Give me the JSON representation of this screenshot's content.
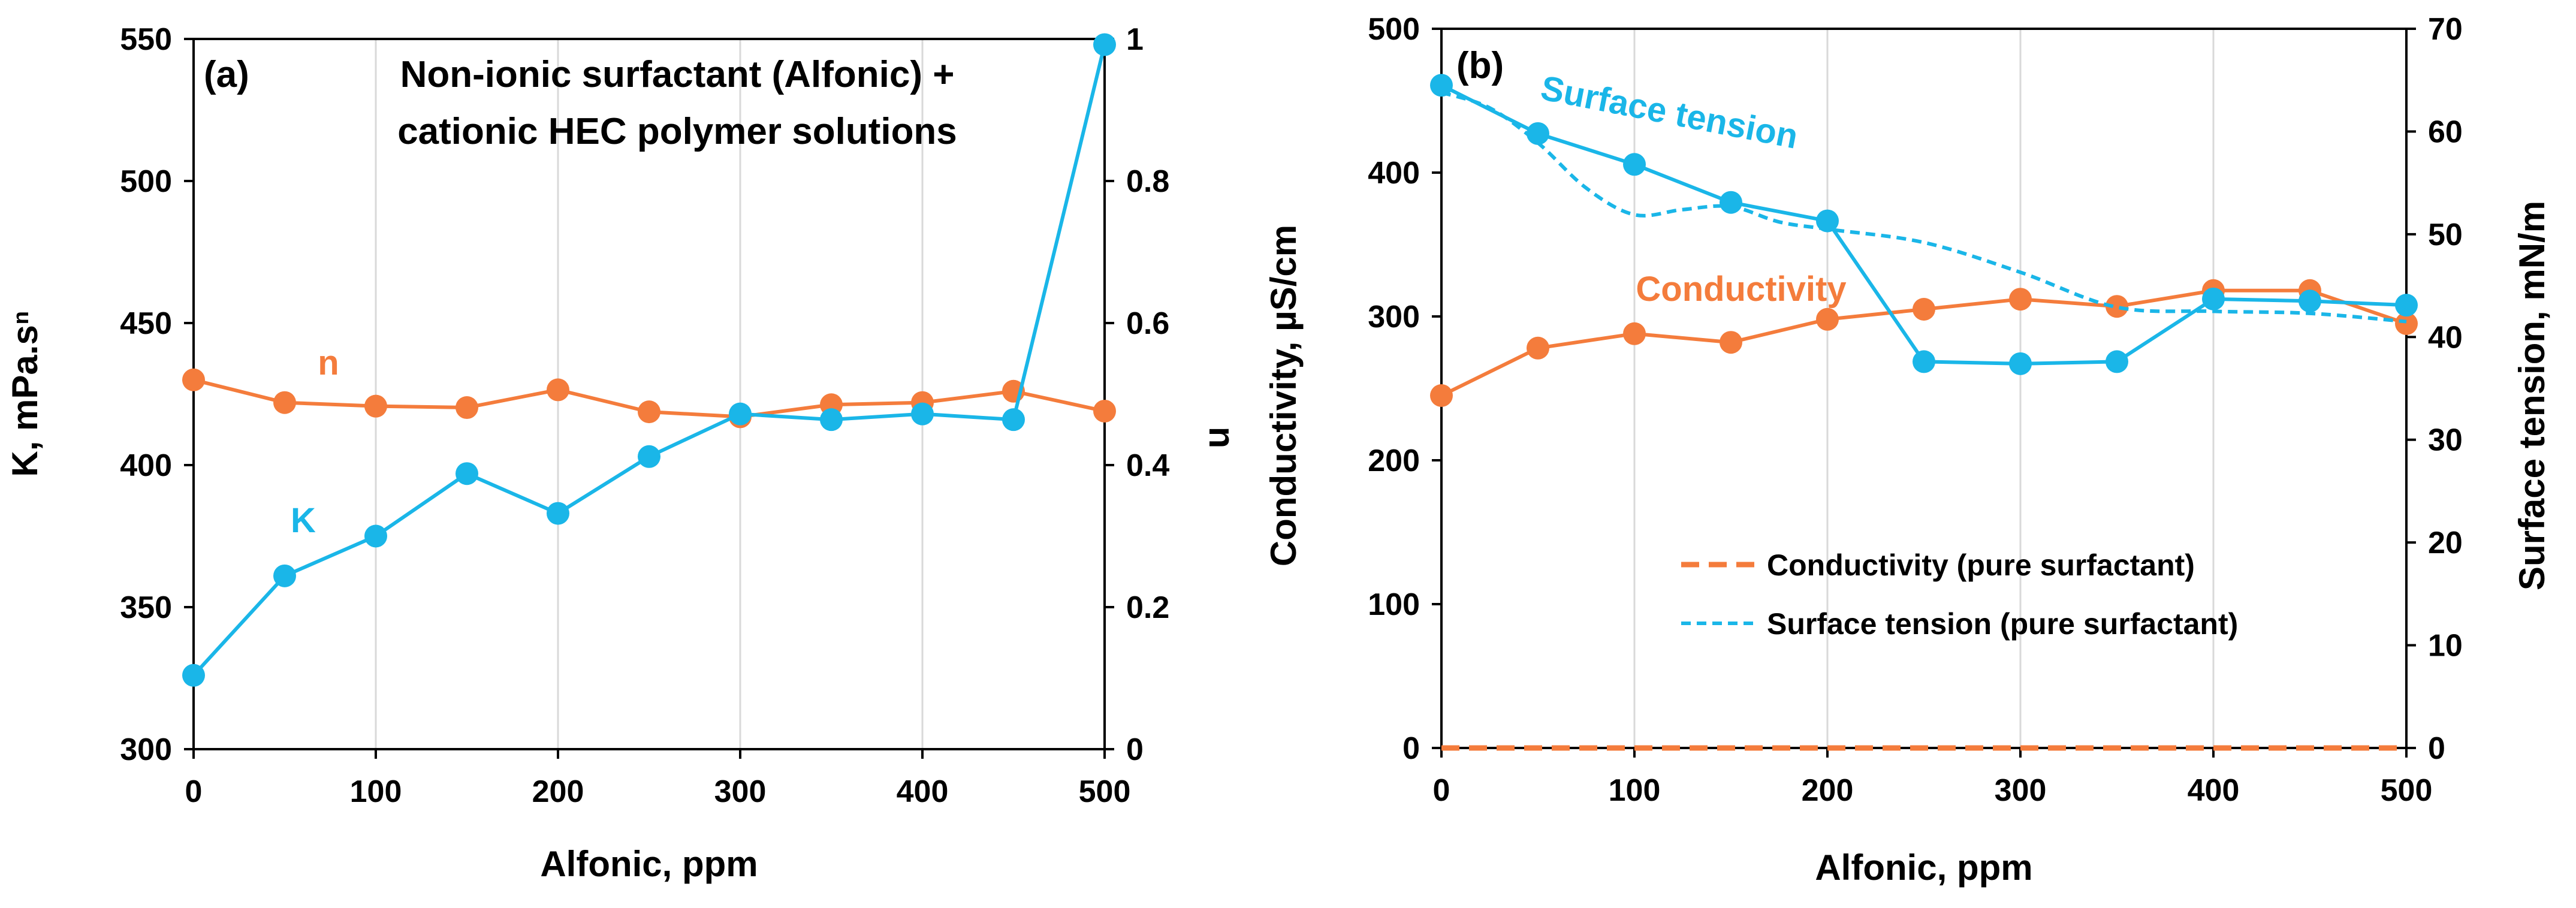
{
  "colors": {
    "orange": "#F47C3C",
    "blue": "#1AB6E8",
    "grid": "#D9D9D9",
    "axis": "#000000"
  },
  "chart_data": [
    {
      "id": "a",
      "type": "line",
      "panel_label": "(a)",
      "title_lines": [
        "Non-ionic surfactant (Alfonic) +",
        "cationic HEC polymer solutions"
      ],
      "xlabel": "Alfonic, ppm",
      "ylabel": "K, mPa.sⁿ",
      "y2label": "n",
      "xlim": [
        0,
        500
      ],
      "ylim": [
        300,
        550
      ],
      "y2lim": [
        0,
        1
      ],
      "x_ticks": [
        0,
        100,
        200,
        300,
        400,
        500
      ],
      "y_ticks": [
        300,
        350,
        400,
        450,
        500,
        550
      ],
      "y2_ticks": [
        0,
        0.2,
        0.4,
        0.6,
        0.8,
        1
      ],
      "y2_tick_labels": [
        "0",
        "0.2",
        "0.4",
        "0.6",
        "0.8",
        "1"
      ],
      "grid": "vertical",
      "series": [
        {
          "name": "n",
          "label": "n",
          "axis": "right",
          "color": "orange",
          "dash": false,
          "x": [
            0,
            50,
            100,
            150,
            200,
            250,
            300,
            350,
            400,
            450,
            500
          ],
          "y": [
            0.52,
            0.488,
            0.483,
            0.481,
            0.506,
            0.475,
            0.468,
            0.485,
            0.488,
            0.504,
            0.476
          ]
        },
        {
          "name": "K",
          "label": "K",
          "axis": "left",
          "color": "blue",
          "dash": false,
          "x": [
            0,
            50,
            100,
            150,
            200,
            250,
            300,
            350,
            400,
            450,
            500
          ],
          "y": [
            326,
            361,
            375,
            397,
            383,
            403,
            418,
            416,
            418,
            416,
            548
          ]
        }
      ]
    },
    {
      "id": "b",
      "type": "line",
      "panel_label": "(b)",
      "xlabel": "Alfonic, ppm",
      "ylabel": "Conductivity, µS/cm",
      "y2label": "Surface tension, mN/m",
      "xlim": [
        0,
        500
      ],
      "ylim": [
        0,
        500
      ],
      "y2lim": [
        0,
        70
      ],
      "x_ticks": [
        0,
        100,
        200,
        300,
        400,
        500
      ],
      "y_ticks": [
        0,
        100,
        200,
        300,
        400,
        500
      ],
      "y2_ticks": [
        0,
        10,
        20,
        30,
        40,
        50,
        60,
        70
      ],
      "grid": "vertical",
      "series": [
        {
          "name": "Conductivity",
          "label": "Conductivity",
          "axis": "left",
          "color": "orange",
          "dash": false,
          "x": [
            0,
            50,
            100,
            150,
            200,
            250,
            300,
            350,
            400,
            450,
            500
          ],
          "y": [
            245,
            278,
            288,
            282,
            298,
            305,
            312,
            307,
            318,
            318,
            295
          ]
        },
        {
          "name": "Surface tension",
          "label": "Surface tension",
          "axis": "right",
          "color": "blue",
          "dash": false,
          "x": [
            0,
            50,
            100,
            150,
            200,
            250,
            300,
            350,
            400,
            450,
            500
          ],
          "y": [
            64.5,
            59.8,
            56.8,
            53.1,
            51.3,
            37.6,
            37.4,
            37.6,
            43.7,
            43.5,
            43.1
          ]
        },
        {
          "name": "Conductivity (pure surfactant)",
          "axis": "left",
          "color": "orange",
          "dash": "long",
          "x": [
            0,
            50,
            100,
            150,
            200,
            250,
            300,
            350,
            400,
            450,
            500
          ],
          "y": [
            0,
            0,
            0,
            0,
            0,
            0,
            0,
            0,
            0,
            0,
            0
          ]
        },
        {
          "name": "Surface tension (pure surfactant)",
          "axis": "right",
          "color": "blue",
          "dash": "short",
          "x": [
            0,
            25,
            50,
            75,
            100,
            125,
            150,
            175,
            200,
            250,
            300,
            350,
            400,
            450,
            500
          ],
          "y": [
            63.8,
            62.3,
            58.9,
            54.5,
            51.9,
            52.4,
            52.7,
            51.2,
            50.5,
            49.2,
            46.3,
            42.9,
            42.5,
            42.3,
            41.5
          ]
        }
      ],
      "legend": {
        "position": "lower-right",
        "entries": [
          "Conductivity (pure surfactant)",
          "Surface tension (pure surfactant)"
        ]
      }
    }
  ]
}
